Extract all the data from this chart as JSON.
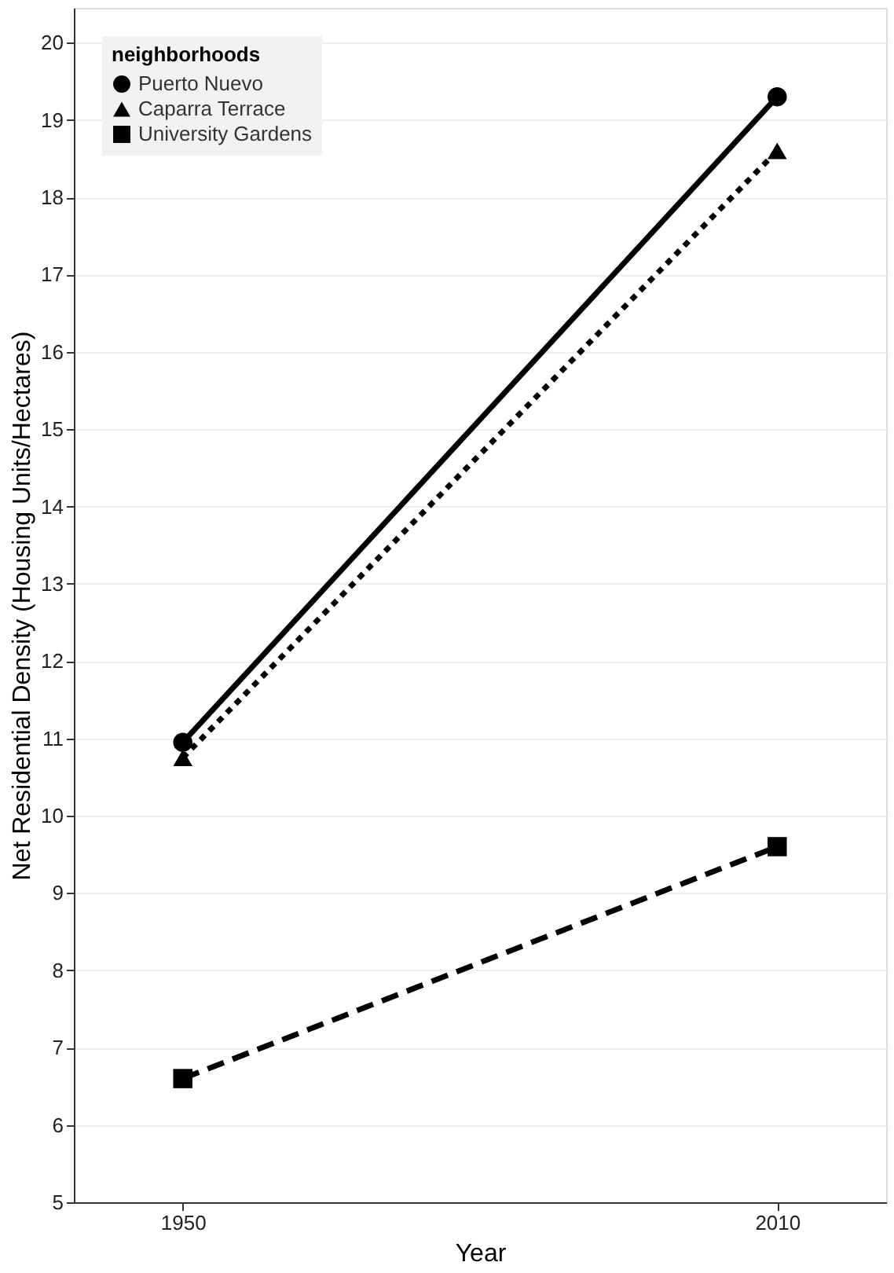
{
  "chart_data": {
    "type": "line",
    "xlabel": "Year",
    "ylabel": "Net Residential Density (Housing Units/Hectares)",
    "legend_title": "neighborhoods",
    "x": [
      1950,
      2010
    ],
    "xlim": [
      1939,
      2021
    ],
    "xticks": [
      1950,
      2010
    ],
    "ylim": [
      5,
      20.45
    ],
    "yticks": [
      5,
      6,
      7,
      8,
      9,
      10,
      11,
      12,
      13,
      14,
      15,
      16,
      17,
      18,
      19,
      20
    ],
    "grid": "y",
    "legend": "top left",
    "series": [
      {
        "name": "Puerto Nuevo",
        "color": "#000000",
        "values": [
          10.95,
          19.3
        ],
        "marker": "circle",
        "line_style": "solid"
      },
      {
        "name": "Caparra Terrace",
        "color": "#000000",
        "values": [
          10.75,
          18.6
        ],
        "marker": "triangle",
        "line_style": "dotted"
      },
      {
        "name": "University Gardens",
        "color": "#000000",
        "values": [
          6.6,
          9.6
        ],
        "marker": "square",
        "line_style": "dashed"
      }
    ]
  }
}
